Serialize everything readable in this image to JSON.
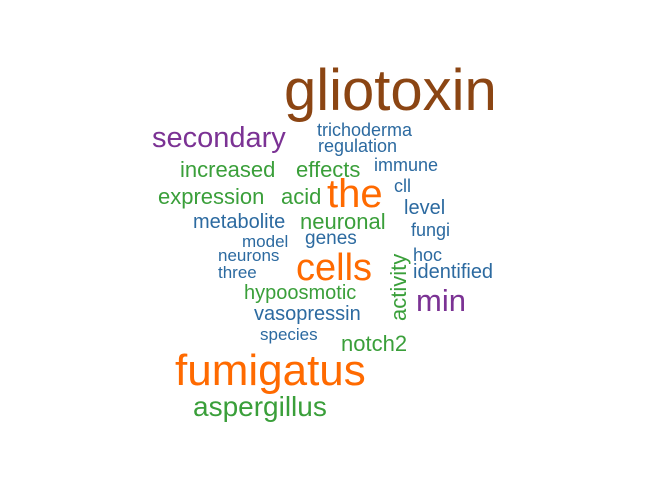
{
  "colors": {
    "brown": "#8B4513",
    "purple": "#7B3294",
    "blue": "#2C6AA0",
    "green": "#3A9F3A",
    "orange": "#FF6A00"
  },
  "words": {
    "gliotoxin": "gliotoxin",
    "secondary": "secondary",
    "trichoderma": "trichoderma",
    "regulation": "regulation",
    "immune": "immune",
    "increased": "increased",
    "effects": "effects",
    "expression": "expression",
    "acid": "acid",
    "the": "the",
    "cll": "cll",
    "level": "level",
    "metabolite": "metabolite",
    "neuronal": "neuronal",
    "fungi": "fungi",
    "model": "model",
    "genes": "genes",
    "neurons": "neurons",
    "hoc": "hoc",
    "three": "three",
    "cells": "cells",
    "identified": "identified",
    "hypoosmotic": "hypoosmotic",
    "activity": "activity",
    "min": "min",
    "vasopressin": "vasopressin",
    "species": "species",
    "notch2": "notch2",
    "fumigatus": "fumigatus",
    "aspergillus": "aspergillus"
  }
}
